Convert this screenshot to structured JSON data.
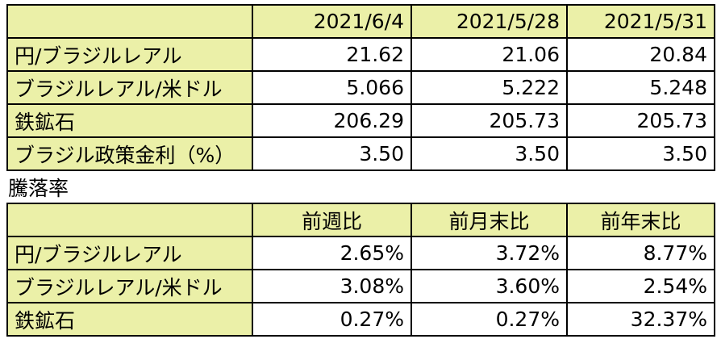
{
  "table1": {
    "header": [
      "2021/6/4",
      "2021/5/28",
      "2021/5/31"
    ],
    "rows": [
      [
        "円/ブラジルレアル",
        "21.62",
        "21.06",
        "20.84"
      ],
      [
        "ブラジルレアル/米ドル",
        "5.066",
        "5.222",
        "5.248"
      ],
      [
        "鉄鉱石",
        "206.29",
        "205.73",
        "205.73"
      ],
      [
        "ブラジル政策金利（%）",
        "3.50",
        "3.50",
        "3.50"
      ]
    ]
  },
  "section_label": "騰落率",
  "table2": {
    "header": [
      "前週比",
      "前月末比",
      "前年末比"
    ],
    "rows": [
      [
        "円/ブラジルレアル",
        "2.65%",
        "3.72%",
        "8.77%"
      ],
      [
        "ブラジルレアル/米ドル",
        "3.08%",
        "3.60%",
        "2.54%"
      ],
      [
        "鉄鉱石",
        "0.27%",
        "0.27%",
        "32.37%"
      ]
    ]
  }
}
